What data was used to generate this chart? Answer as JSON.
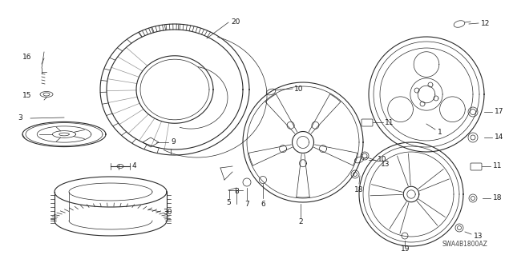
{
  "background_color": "#ffffff",
  "fig_width": 6.4,
  "fig_height": 3.19,
  "watermark": "SWA4B1800AZ",
  "line_color": "#2a2a2a",
  "text_color": "#1a1a1a",
  "font_size": 6.5
}
